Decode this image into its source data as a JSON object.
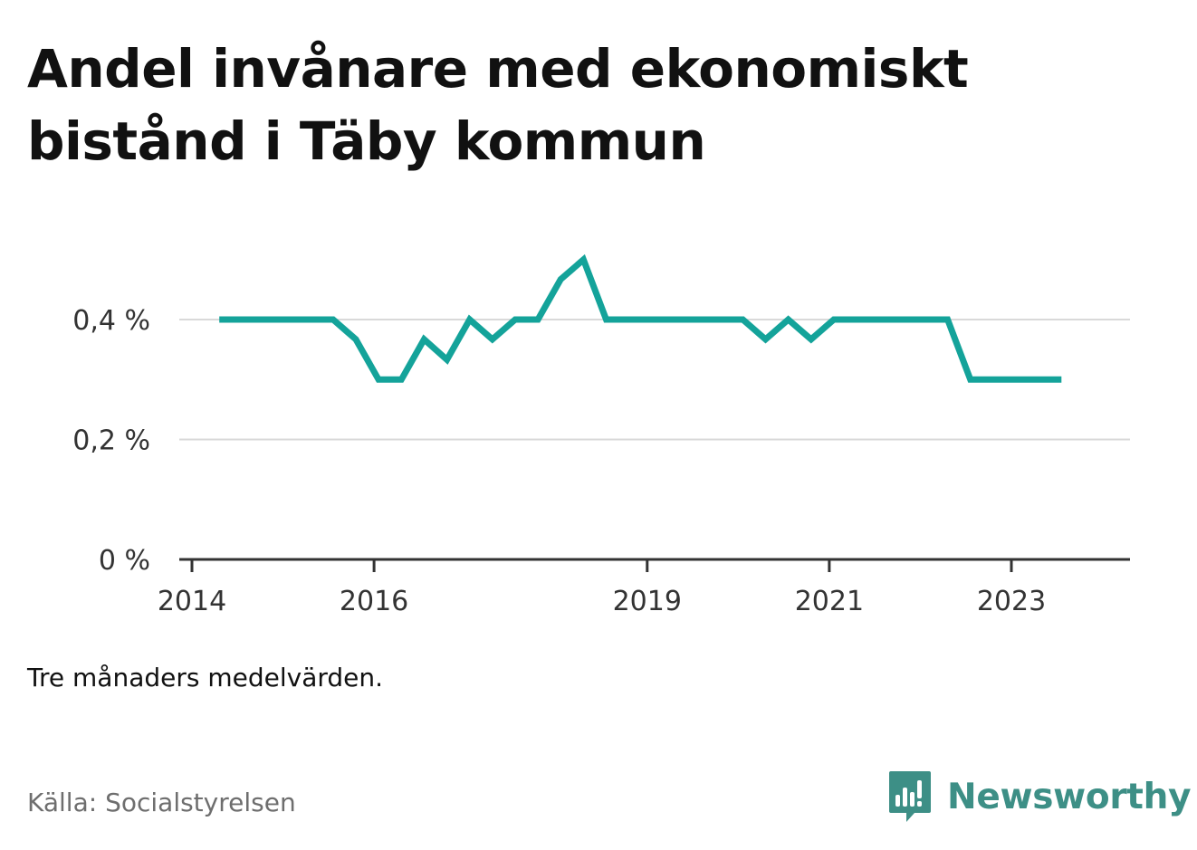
{
  "title": "Andel invånare med ekonomiskt bistånd i Täby kommun",
  "note": "Tre månaders medelvärden.",
  "source": "Källa: Socialstyrelsen",
  "brand": {
    "name": "Newsworthy",
    "icon": "newsworthy-logo-icon",
    "color": "#3d8f86"
  },
  "chart_data": {
    "type": "line",
    "title": "Andel invånare med ekonomiskt bistånd i Täby kommun",
    "xlabel": "",
    "ylabel": "",
    "line_color": "#14a39a",
    "grid": true,
    "ylim": [
      0,
      0.5
    ],
    "y_ticks": [
      {
        "value": 0,
        "label": "0 %"
      },
      {
        "value": 0.2,
        "label": "0,2 %"
      },
      {
        "value": 0.4,
        "label": "0,4 %"
      }
    ],
    "xlim": [
      2014,
      2024.15
    ],
    "x_ticks": [
      {
        "value": 2014,
        "label": "2014"
      },
      {
        "value": 2016,
        "label": "2016"
      },
      {
        "value": 2019,
        "label": "2019"
      },
      {
        "value": 2021,
        "label": "2021"
      },
      {
        "value": 2023,
        "label": "2023"
      }
    ],
    "series": [
      {
        "points": [
          [
            2014.3,
            0.4
          ],
          [
            2014.55,
            0.4
          ],
          [
            2014.8,
            0.4
          ],
          [
            2015.05,
            0.4
          ],
          [
            2015.3,
            0.4
          ],
          [
            2015.55,
            0.4
          ],
          [
            2015.8,
            0.367
          ],
          [
            2016.05,
            0.3
          ],
          [
            2016.3,
            0.3
          ],
          [
            2016.55,
            0.367
          ],
          [
            2016.8,
            0.333
          ],
          [
            2017.05,
            0.4
          ],
          [
            2017.3,
            0.367
          ],
          [
            2017.55,
            0.4
          ],
          [
            2017.8,
            0.4
          ],
          [
            2018.05,
            0.467
          ],
          [
            2018.3,
            0.5
          ],
          [
            2018.55,
            0.4
          ],
          [
            2018.8,
            0.4
          ],
          [
            2019.05,
            0.4
          ],
          [
            2019.3,
            0.4
          ],
          [
            2019.55,
            0.4
          ],
          [
            2019.8,
            0.4
          ],
          [
            2020.05,
            0.4
          ],
          [
            2020.3,
            0.367
          ],
          [
            2020.55,
            0.4
          ],
          [
            2020.8,
            0.367
          ],
          [
            2021.05,
            0.4
          ],
          [
            2021.3,
            0.4
          ],
          [
            2021.55,
            0.4
          ],
          [
            2021.8,
            0.4
          ],
          [
            2022.05,
            0.4
          ],
          [
            2022.3,
            0.4
          ],
          [
            2022.55,
            0.3
          ],
          [
            2022.8,
            0.3
          ],
          [
            2023.05,
            0.3
          ],
          [
            2023.3,
            0.3
          ],
          [
            2023.55,
            0.3
          ]
        ]
      }
    ]
  }
}
